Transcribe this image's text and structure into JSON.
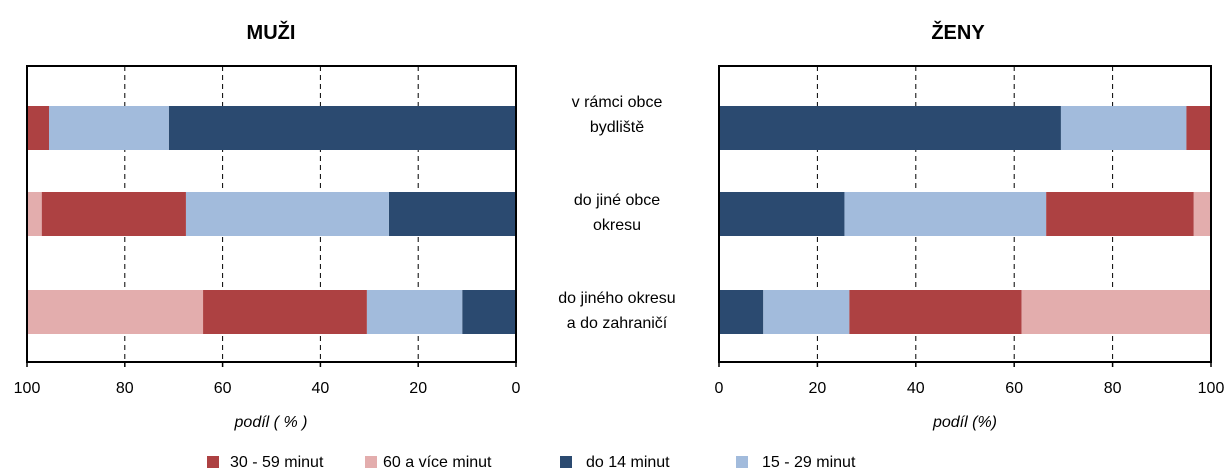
{
  "chart_data": [
    {
      "type": "bar",
      "orientation": "horizontal-stacked",
      "title": "MUŽI",
      "xlabel": "podíl ( % )",
      "xlim": [
        0,
        100
      ],
      "x_reversed": true,
      "xticks": [
        "100",
        "80",
        "60",
        "40",
        "20",
        "0"
      ],
      "grid": "vertical-dashed",
      "categories": [
        "v rámci obce bydliště",
        "do jiné obce okresu",
        "do jiného okresu a do zahraničí"
      ],
      "series": [
        {
          "name": "do 14 minut",
          "color": "#2b4a70",
          "values": [
            71,
            26,
            11
          ]
        },
        {
          "name": "15 - 29 minut",
          "color": "#a2bbdc",
          "values": [
            24.5,
            41.5,
            19.5
          ]
        },
        {
          "name": "30 - 59 minut",
          "color": "#ad4142",
          "values": [
            4.5,
            29.5,
            33.5
          ]
        },
        {
          "name": "60 a více minut",
          "color": "#e3adad",
          "values": [
            0,
            3,
            36
          ]
        }
      ]
    },
    {
      "type": "bar",
      "orientation": "horizontal-stacked",
      "title": "ŽENY",
      "xlabel": "podíl (%)",
      "xlim": [
        0,
        100
      ],
      "x_reversed": false,
      "xticks": [
        "0",
        "20",
        "40",
        "60",
        "80",
        "100"
      ],
      "grid": "vertical-dashed",
      "categories": [
        "v rámci obce bydliště",
        "do jiné obce okresu",
        "do jiného okresu a do zahraničí"
      ],
      "series": [
        {
          "name": "do 14 minut",
          "color": "#2b4a70",
          "values": [
            69.5,
            25.5,
            9
          ]
        },
        {
          "name": "15 - 29 minut",
          "color": "#a2bbdc",
          "values": [
            25.5,
            41,
            17.5
          ]
        },
        {
          "name": "30 - 59 minut",
          "color": "#ad4142",
          "values": [
            5,
            30,
            35
          ]
        },
        {
          "name": "60 a více minut",
          "color": "#e3adad",
          "values": [
            0,
            3.5,
            38.5
          ]
        }
      ]
    }
  ],
  "category_labels": [
    [
      "v rámci obce",
      "bydliště"
    ],
    [
      "do jiné obce",
      "okresu"
    ],
    [
      "do jiného okresu",
      "a do zahraničí"
    ]
  ],
  "legend": [
    {
      "label": "30 - 59 minut",
      "color": "#ad4142"
    },
    {
      "label": "60 a více minut",
      "color": "#e3adad"
    },
    {
      "label": "do 14 minut",
      "color": "#2b4a70"
    },
    {
      "label": "15 - 29 minut",
      "color": "#a2bbdc"
    }
  ]
}
